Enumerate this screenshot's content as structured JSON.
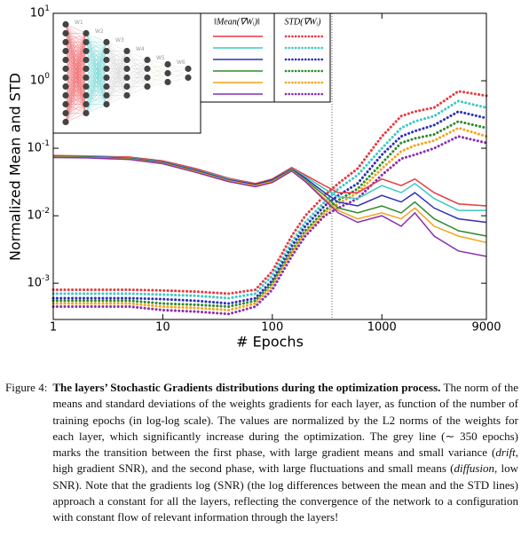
{
  "chart_data": {
    "type": "line",
    "xlabel": "# Epochs",
    "ylabel": "Normalized Mean and STD",
    "log_x": true,
    "log_y": true,
    "xlim": [
      1,
      9000
    ],
    "xticks": [
      1,
      10,
      100,
      1000,
      9000
    ],
    "ylim": [
      0.00029,
      10
    ],
    "yticks": [
      {
        "value": 10,
        "label": "10^1"
      },
      {
        "value": 1,
        "label": "10^0"
      },
      {
        "value": 0.1,
        "label": "10^-1"
      },
      {
        "value": 0.01,
        "label": "10^-2"
      },
      {
        "value": 0.001,
        "label": "10^-3"
      }
    ],
    "phase_line_x": 350,
    "phase_line_color": "#777777",
    "x": [
      1,
      2,
      5,
      10,
      20,
      40,
      70,
      100,
      150,
      200,
      300,
      400,
      600,
      1000,
      1500,
      2000,
      3000,
      5000,
      9000
    ],
    "legend": {
      "mean_header": "‖Mean(∇Wᵢ)‖",
      "std_header": "STD(∇Wᵢ)"
    },
    "inset_layers": [
      "W1",
      "W2",
      "W3",
      "W4",
      "W5",
      "W6"
    ],
    "mean_series": [
      {
        "color": "#e8393f",
        "values": [
          0.078,
          0.077,
          0.074,
          0.065,
          0.05,
          0.036,
          0.03,
          0.035,
          0.052,
          0.04,
          0.028,
          0.022,
          0.022,
          0.035,
          0.028,
          0.035,
          0.022,
          0.015,
          0.014
        ]
      },
      {
        "color": "#3fc7c4",
        "values": [
          0.077,
          0.076,
          0.072,
          0.063,
          0.048,
          0.035,
          0.029,
          0.034,
          0.05,
          0.038,
          0.025,
          0.019,
          0.018,
          0.028,
          0.022,
          0.03,
          0.018,
          0.012,
          0.012
        ]
      },
      {
        "color": "#2f2fb8",
        "values": [
          0.076,
          0.075,
          0.071,
          0.062,
          0.047,
          0.034,
          0.029,
          0.034,
          0.049,
          0.036,
          0.022,
          0.016,
          0.014,
          0.02,
          0.016,
          0.022,
          0.013,
          0.009,
          0.008
        ]
      },
      {
        "color": "#2e8b2e",
        "values": [
          0.075,
          0.074,
          0.07,
          0.061,
          0.046,
          0.033,
          0.028,
          0.033,
          0.048,
          0.034,
          0.02,
          0.013,
          0.011,
          0.014,
          0.011,
          0.016,
          0.009,
          0.006,
          0.005
        ]
      },
      {
        "color": "#f4a31c",
        "values": [
          0.074,
          0.073,
          0.069,
          0.06,
          0.045,
          0.033,
          0.028,
          0.032,
          0.047,
          0.033,
          0.018,
          0.012,
          0.009,
          0.011,
          0.009,
          0.013,
          0.007,
          0.005,
          0.004
        ]
      },
      {
        "color": "#8a2fb0",
        "values": [
          0.073,
          0.072,
          0.068,
          0.059,
          0.044,
          0.032,
          0.027,
          0.031,
          0.046,
          0.032,
          0.017,
          0.011,
          0.008,
          0.01,
          0.007,
          0.011,
          0.005,
          0.003,
          0.0025
        ]
      }
    ],
    "std_series": [
      {
        "color": "#e8393f",
        "values": [
          0.0008,
          0.0008,
          0.0008,
          0.00078,
          0.00075,
          0.0007,
          0.0008,
          0.0015,
          0.005,
          0.01,
          0.02,
          0.03,
          0.05,
          0.15,
          0.3,
          0.35,
          0.4,
          0.7,
          0.6
        ]
      },
      {
        "color": "#3fc7c4",
        "values": [
          0.0007,
          0.0007,
          0.0007,
          0.00068,
          0.00065,
          0.0006,
          0.0007,
          0.0013,
          0.004,
          0.008,
          0.016,
          0.025,
          0.04,
          0.1,
          0.2,
          0.25,
          0.3,
          0.5,
          0.4
        ]
      },
      {
        "color": "#2f2fb8",
        "values": [
          0.0006,
          0.0006,
          0.0006,
          0.00058,
          0.00055,
          0.0005,
          0.0006,
          0.0011,
          0.0035,
          0.007,
          0.014,
          0.02,
          0.03,
          0.08,
          0.15,
          0.18,
          0.22,
          0.35,
          0.28
        ]
      },
      {
        "color": "#2e8b2e",
        "values": [
          0.00055,
          0.00055,
          0.00055,
          0.0005,
          0.00048,
          0.00045,
          0.00055,
          0.001,
          0.003,
          0.006,
          0.012,
          0.017,
          0.025,
          0.06,
          0.12,
          0.14,
          0.16,
          0.25,
          0.2
        ]
      },
      {
        "color": "#f4a31c",
        "values": [
          0.0005,
          0.0005,
          0.0005,
          0.00045,
          0.00043,
          0.0004,
          0.0005,
          0.0009,
          0.0028,
          0.0055,
          0.011,
          0.015,
          0.022,
          0.05,
          0.09,
          0.11,
          0.13,
          0.2,
          0.15
        ]
      },
      {
        "color": "#8a2fb0",
        "values": [
          0.00045,
          0.00045,
          0.00045,
          0.0004,
          0.00038,
          0.00035,
          0.00045,
          0.0008,
          0.0025,
          0.005,
          0.01,
          0.013,
          0.018,
          0.04,
          0.07,
          0.08,
          0.1,
          0.15,
          0.12
        ]
      }
    ]
  },
  "caption": {
    "label": "Figure 4:",
    "bold": "The layers’ Stochastic Gradients distributions during the optimization process.",
    "segments": [
      {
        "text": " The norm of the means and standard deviations of the weights gradients for each layer, as function of the number of training epochs (in log-log scale). The values are normalized by the L2 norms of the weights for each layer, which significantly increase during the optimization. The grey line (∼ 350 epochs) marks the transition between the first phase, with large gradient means and small variance (",
        "italic": false
      },
      {
        "text": "drift",
        "italic": true
      },
      {
        "text": ", high gradient SNR), and the second phase, with large fluctuations and small means (",
        "italic": false
      },
      {
        "text": "diffusion",
        "italic": true
      },
      {
        "text": ", low SNR). Note that the gradients log (SNR) (the log differences between the mean and the STD lines) approach a constant for all the layers, reflecting the convergence of the network to a configuration with constant flow of relevant information through the layers!",
        "italic": false
      }
    ]
  }
}
